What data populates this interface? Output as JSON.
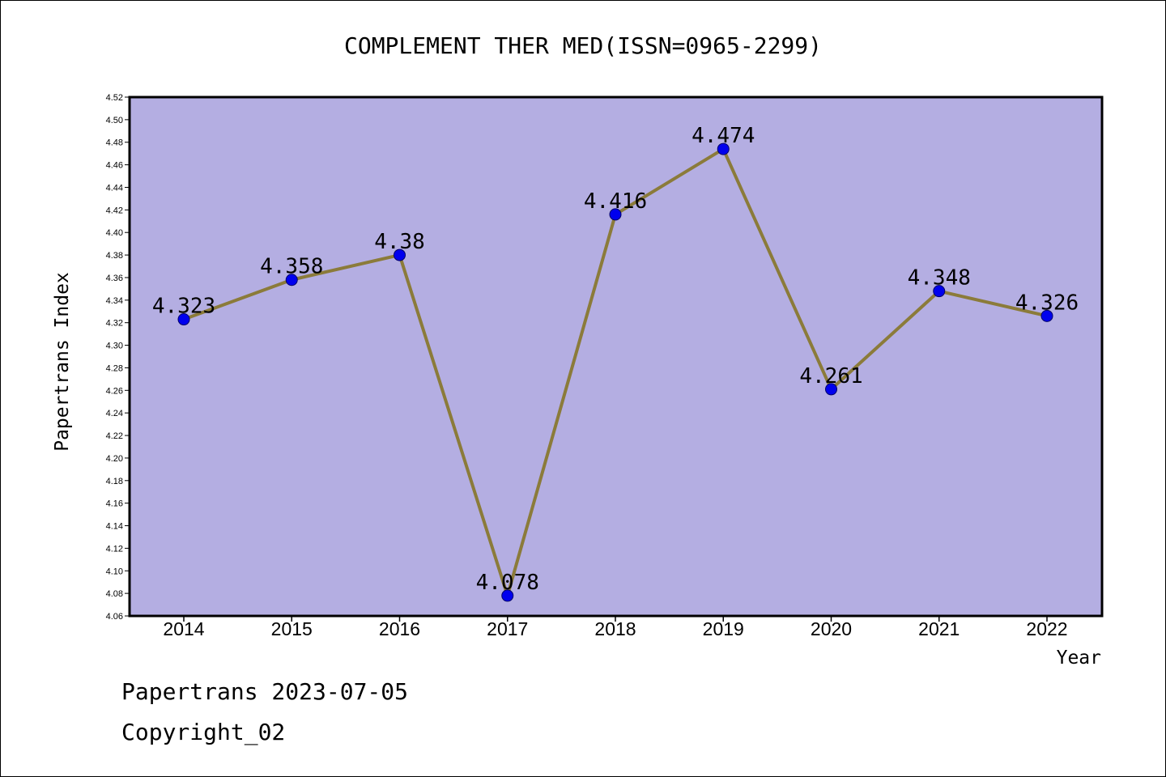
{
  "chart_data": {
    "type": "line",
    "title": "COMPLEMENT THER MED(ISSN=0965-2299)",
    "xlabel": "Year",
    "ylabel": "Papertrans Index",
    "categories": [
      "2014",
      "2015",
      "2016",
      "2017",
      "2018",
      "2019",
      "2020",
      "2021",
      "2022"
    ],
    "values": [
      4.323,
      4.358,
      4.38,
      4.078,
      4.416,
      4.474,
      4.261,
      4.348,
      4.326
    ],
    "data_labels": [
      "4.323",
      "4.358",
      "4.38",
      "4.078",
      "4.416",
      "4.474",
      "4.261",
      "4.348",
      "4.326"
    ],
    "ylim": [
      4.06,
      4.52
    ],
    "yticks": [
      "4.06",
      "4.08",
      "4.10",
      "4.12",
      "4.14",
      "4.16",
      "4.18",
      "4.20",
      "4.22",
      "4.24",
      "4.26",
      "4.28",
      "4.30",
      "4.32",
      "4.34",
      "4.36",
      "4.38",
      "4.40",
      "4.42",
      "4.44",
      "4.46",
      "4.48",
      "4.50",
      "4.52"
    ],
    "grid": false,
    "plot_background": "#b4aee2",
    "line_color": "#8b7b3a",
    "marker_color": "#0000ee"
  },
  "footer": {
    "line1": "Papertrans 2023-07-05",
    "line2": "Copyright_02"
  }
}
